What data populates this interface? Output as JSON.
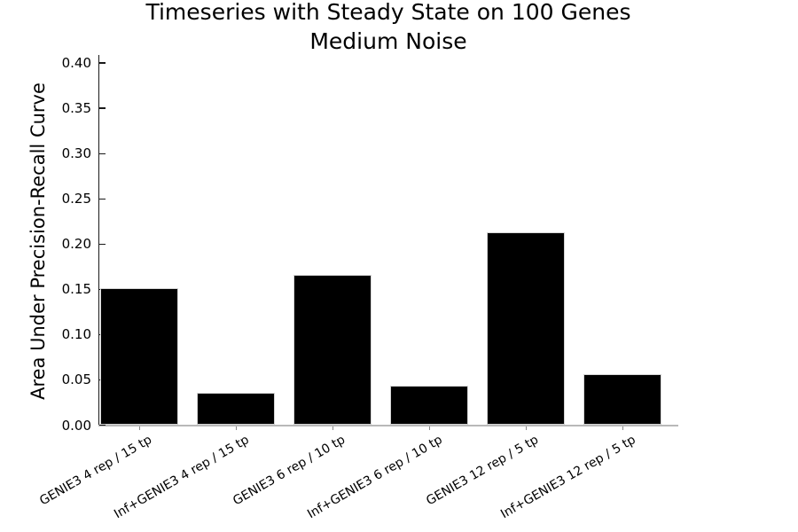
{
  "title": {
    "line1": "Timeseries with Steady State on 100 Genes",
    "line2": "Medium Noise"
  },
  "chart_data": {
    "type": "bar",
    "title": "Timeseries with Steady State on 100 Genes\nMedium Noise",
    "categories": [
      "GENIE3 4 rep / 15 tp",
      "Inf+GENIE3 4 rep / 15 tp",
      "GENIE3 6 rep / 10 tp",
      "Inf+GENIE3 6 rep / 10 tp",
      "GENIE3 12 rep / 5 tp",
      "Inf+GENIE3 12 rep / 5 tp"
    ],
    "values": [
      0.151,
      0.036,
      0.166,
      0.044,
      0.213,
      0.056
    ],
    "xlabel": "",
    "ylabel": "Area Under Precision-Recall Curve",
    "ylim": [
      0.0,
      0.41
    ],
    "yticks": [
      0.0,
      0.05,
      0.1,
      0.15,
      0.2,
      0.25,
      0.3,
      0.35,
      0.4
    ],
    "ytick_labels": [
      "0.00",
      "0.05",
      "0.10",
      "0.15",
      "0.20",
      "0.25",
      "0.30",
      "0.35",
      "0.40"
    ],
    "xtick_rotation_deg": 30,
    "grid": false,
    "legend_position": "none",
    "bar_color": "#000000",
    "bar_edge_color": "#d4d4d4",
    "left_spine_color": "#1a1a1a",
    "bottom_spine_color": "#b9b9b9",
    "text_color": "#000000",
    "background_color": "#ffffff"
  }
}
